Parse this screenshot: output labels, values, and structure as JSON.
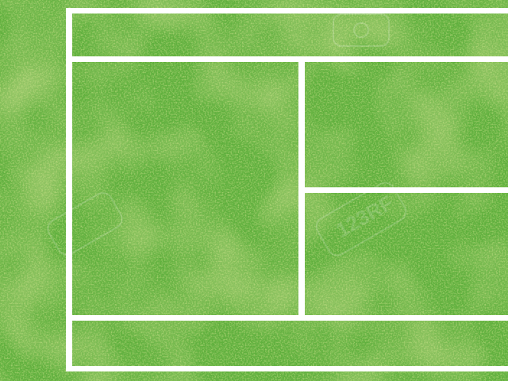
{
  "scene": {
    "subject": "tennis-court-top-view",
    "surface": "grass",
    "colors": {
      "grass_base": "#5fb03c",
      "grass_dark": "#3f8f2a",
      "grass_light": "#9ccc4e",
      "grass_yellow": "#c3cf62",
      "line": "#ffffff"
    }
  },
  "watermark": {
    "brand": "123RF"
  }
}
